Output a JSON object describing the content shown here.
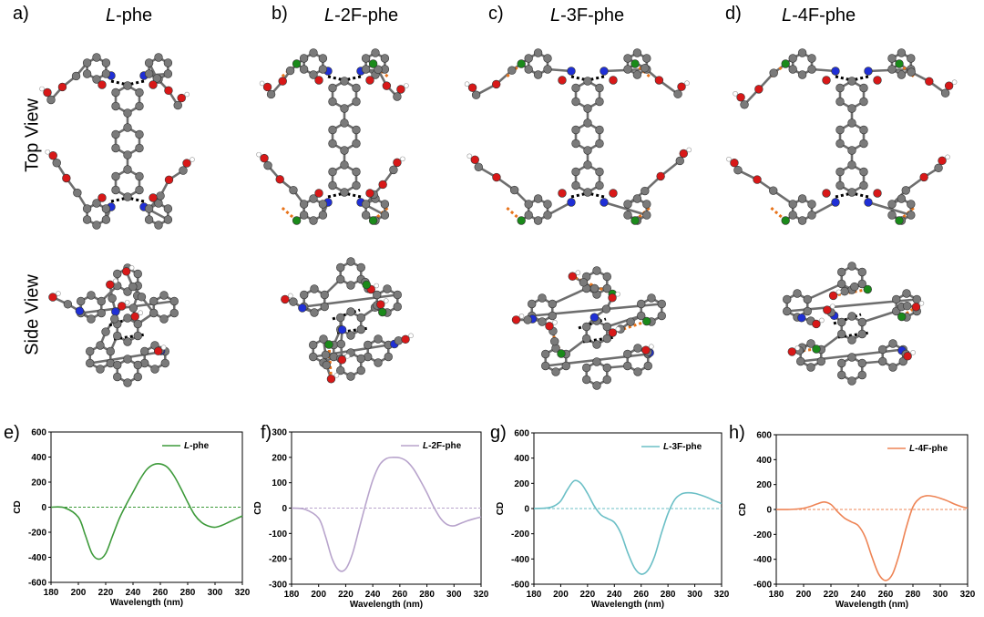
{
  "figure": {
    "panel_letters": [
      "a)",
      "b)",
      "c)",
      "d)",
      "e)",
      "f)",
      "g)",
      "h)"
    ],
    "columns": [
      {
        "prefix": "L",
        "suffix": "-phe"
      },
      {
        "prefix": "L",
        "suffix": "-2F-phe"
      },
      {
        "prefix": "L",
        "suffix": "-3F-phe"
      },
      {
        "prefix": "L",
        "suffix": "-4F-phe"
      }
    ],
    "rows": [
      "Top View",
      "Side View"
    ],
    "atom_colors": {
      "carbon": "#7a7a7a",
      "oxygen": "#d81818",
      "nitrogen": "#1f2fd6",
      "fluorine": "#1a8a1a",
      "hydrogen": "#ffffff",
      "hbond": "#000000",
      "fbond": "#e8731a"
    }
  },
  "chart_data": [
    {
      "type": "line",
      "panel": "e)",
      "xlabel": "Wavelength (nm)",
      "ylabel": "CD",
      "xlim": [
        180,
        320
      ],
      "ylim": [
        -600,
        600
      ],
      "xticks": [
        180,
        200,
        220,
        240,
        260,
        280,
        300,
        320
      ],
      "yticks": [
        -600,
        -400,
        -200,
        0,
        200,
        400,
        600
      ],
      "ytick_labels": [
        "-600",
        "-400",
        "-200",
        "0",
        "200",
        "400",
        "600"
      ],
      "color": "#3d9a3a",
      "legend_position": "top-right",
      "series": [
        {
          "name": "L-phe",
          "name_prefix": "L",
          "name_suffix": "-phe",
          "x": [
            180,
            190,
            200,
            205,
            210,
            215,
            220,
            225,
            230,
            235,
            240,
            245,
            250,
            255,
            260,
            265,
            270,
            275,
            280,
            285,
            290,
            295,
            300,
            305,
            310,
            315,
            320
          ],
          "y": [
            0,
            -5,
            -80,
            -220,
            -370,
            -415,
            -370,
            -230,
            -90,
            20,
            120,
            220,
            300,
            340,
            345,
            320,
            250,
            150,
            40,
            -60,
            -120,
            -150,
            -160,
            -145,
            -120,
            -95,
            -70
          ]
        }
      ]
    },
    {
      "type": "line",
      "panel": "f)",
      "xlabel": "Wavelength (nm)",
      "ylabel": "CD",
      "xlim": [
        180,
        320
      ],
      "ylim": [
        -300,
        300
      ],
      "xticks": [
        180,
        200,
        220,
        240,
        260,
        280,
        300,
        320
      ],
      "yticks": [
        -300,
        -200,
        -100,
        0,
        100,
        200,
        300
      ],
      "ytick_labels": [
        "-300",
        "-200",
        "-100",
        "0",
        "100",
        "200",
        "300"
      ],
      "color": "#b8a4cc",
      "legend_position": "top-right",
      "series": [
        {
          "name": "L-2F-phe",
          "name_prefix": "L",
          "name_suffix": "-2F-phe",
          "x": [
            180,
            190,
            200,
            205,
            210,
            215,
            220,
            225,
            230,
            235,
            240,
            245,
            250,
            255,
            260,
            265,
            270,
            275,
            280,
            285,
            290,
            295,
            300,
            305,
            310,
            315,
            320
          ],
          "y": [
            0,
            -5,
            -40,
            -110,
            -200,
            -245,
            -240,
            -180,
            -80,
            20,
            110,
            170,
            195,
            200,
            198,
            185,
            155,
            110,
            60,
            5,
            -40,
            -65,
            -70,
            -60,
            -50,
            -42,
            -35
          ]
        }
      ]
    },
    {
      "type": "line",
      "panel": "g)",
      "xlabel": "Wavelength (nm)",
      "ylabel": "CD",
      "xlim": [
        180,
        320
      ],
      "ylim": [
        -600,
        600
      ],
      "xticks": [
        180,
        200,
        220,
        240,
        260,
        280,
        300,
        320
      ],
      "yticks": [
        -600,
        -400,
        -200,
        0,
        200,
        400,
        600
      ],
      "ytick_labels": [
        "-600",
        "-400",
        "-200",
        "0",
        "200",
        "400",
        "600"
      ],
      "color": "#6bbfc6",
      "legend_position": "top-right",
      "series": [
        {
          "name": "L-3F-phe",
          "name_prefix": "L",
          "name_suffix": "-3F-phe",
          "x": [
            180,
            190,
            195,
            200,
            205,
            210,
            215,
            220,
            225,
            230,
            235,
            240,
            245,
            250,
            255,
            260,
            265,
            270,
            275,
            280,
            285,
            290,
            295,
            300,
            305,
            310,
            315,
            320
          ],
          "y": [
            0,
            5,
            20,
            60,
            150,
            220,
            200,
            120,
            20,
            -50,
            -80,
            -110,
            -200,
            -350,
            -470,
            -520,
            -490,
            -380,
            -200,
            -40,
            70,
            115,
            125,
            120,
            105,
            85,
            60,
            40
          ]
        }
      ]
    },
    {
      "type": "line",
      "panel": "h)",
      "xlabel": "Wavelength (nm)",
      "ylabel": "CD",
      "xlim": [
        180,
        320
      ],
      "ylim": [
        -600,
        600
      ],
      "xticks": [
        180,
        200,
        220,
        240,
        260,
        280,
        300,
        320
      ],
      "yticks": [
        -600,
        -400,
        -200,
        0,
        200,
        400,
        600
      ],
      "ytick_labels": [
        "-600",
        "-400",
        "-200",
        "0",
        "200",
        "400",
        "600"
      ],
      "color": "#ee8455",
      "legend_position": "top-right",
      "series": [
        {
          "name": "L-4F-phe",
          "name_prefix": "L",
          "name_suffix": "-4F-phe",
          "x": [
            180,
            190,
            200,
            205,
            210,
            215,
            220,
            225,
            230,
            235,
            240,
            245,
            250,
            255,
            260,
            265,
            270,
            275,
            280,
            285,
            290,
            295,
            300,
            305,
            310,
            315,
            320
          ],
          "y": [
            0,
            0,
            10,
            25,
            45,
            60,
            40,
            -20,
            -70,
            -100,
            -130,
            -220,
            -380,
            -520,
            -570,
            -520,
            -360,
            -150,
            20,
            90,
            110,
            105,
            90,
            70,
            45,
            25,
            10
          ]
        }
      ]
    }
  ]
}
